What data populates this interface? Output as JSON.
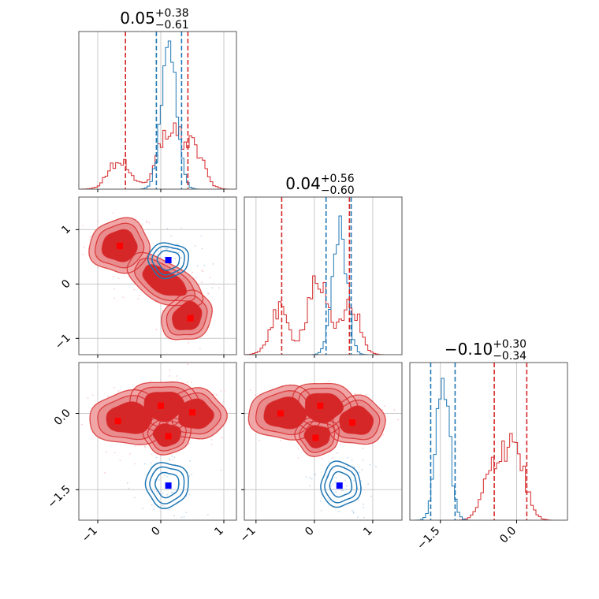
{
  "chart_data": {
    "type": "corner",
    "colors": {
      "red": "#d62728",
      "blue": "#1f77b4",
      "red_fill": "#f0a6a6",
      "marker_red": "#ff0000",
      "marker_blue": "#0000ff",
      "grid": "#c8c8c8"
    },
    "panels": [
      {
        "id": "hist-1",
        "type": "histogram",
        "row": 0,
        "col": 0,
        "title": {
          "main": "0.05",
          "sup": "+0.38",
          "sub": "−0.61"
        },
        "xlim": [
          -1.3,
          1.2
        ],
        "red_quantiles": [
          -0.56,
          0.43
        ],
        "blue_quantiles": [
          -0.07,
          0.33
        ],
        "red_modes": [
          {
            "mu": -0.65,
            "sigma": 0.17,
            "w": 0.22
          },
          {
            "mu": 0.12,
            "sigma": 0.16,
            "w": 0.45
          },
          {
            "mu": 0.5,
            "sigma": 0.16,
            "w": 0.33
          }
        ],
        "red_peak": 0.42,
        "blue_modes": [
          {
            "mu": 0.13,
            "sigma": 0.12,
            "w": 1.0
          }
        ],
        "blue_peak": 0.94
      },
      {
        "id": "hist-2",
        "type": "histogram",
        "row": 1,
        "col": 1,
        "title": {
          "main": "0.04",
          "sup": "+0.56",
          "sub": "−0.60"
        },
        "xlim": [
          -1.2,
          1.5
        ],
        "red_quantiles": [
          -0.56,
          0.6
        ],
        "blue_quantiles": [
          0.2,
          0.63
        ],
        "red_modes": [
          {
            "mu": -0.6,
            "sigma": 0.16,
            "w": 0.25
          },
          {
            "mu": 0.05,
            "sigma": 0.17,
            "w": 0.45
          },
          {
            "mu": 0.62,
            "sigma": 0.15,
            "w": 0.3
          }
        ],
        "red_peak": 0.5,
        "blue_modes": [
          {
            "mu": 0.43,
            "sigma": 0.12,
            "w": 1.0
          }
        ],
        "blue_peak": 0.88
      },
      {
        "id": "hist-3",
        "type": "histogram",
        "row": 2,
        "col": 2,
        "title": {
          "main": "−0.10",
          "sup": "+0.30",
          "sub": "−0.34"
        },
        "xlim": [
          -2.1,
          1.0
        ],
        "red_quantiles": [
          -0.44,
          0.2
        ],
        "blue_quantiles": [
          -1.69,
          -1.21
        ],
        "red_modes": [
          {
            "mu": -0.05,
            "sigma": 0.2,
            "w": 0.6
          },
          {
            "mu": -0.45,
            "sigma": 0.2,
            "w": 0.4
          }
        ],
        "red_peak": 0.55,
        "blue_modes": [
          {
            "mu": -1.45,
            "sigma": 0.13,
            "w": 1.0
          }
        ],
        "blue_peak": 0.9
      },
      {
        "id": "contour-2-1",
        "type": "contour",
        "row": 1,
        "col": 0,
        "xlim": [
          -1.3,
          1.2
        ],
        "ylim": [
          -1.3,
          1.6
        ],
        "red_markers": [
          [
            -0.65,
            0.7
          ],
          [
            0.47,
            -0.63
          ]
        ],
        "blue_markers": [
          [
            0.12,
            0.44
          ]
        ],
        "red_blobs": [
          {
            "cx": -0.65,
            "cy": 0.7,
            "rx": 0.38,
            "ry": 0.4,
            "rot": -20
          },
          {
            "cx": 0.05,
            "cy": 0.05,
            "rx": 0.55,
            "ry": 0.28,
            "rot": -35
          },
          {
            "cx": 0.42,
            "cy": -0.6,
            "rx": 0.3,
            "ry": 0.38,
            "rot": -30
          }
        ],
        "blue_ellipses": [
          {
            "cx": 0.12,
            "cy": 0.44,
            "rx": 0.32,
            "ry": 0.32,
            "rot": 0
          }
        ]
      },
      {
        "id": "contour-3-1",
        "type": "contour",
        "row": 2,
        "col": 0,
        "xlim": [
          -1.3,
          1.2
        ],
        "ylim": [
          -2.1,
          1.0
        ],
        "red_markers": [
          [
            -0.68,
            -0.15
          ],
          [
            0.0,
            0.15
          ],
          [
            0.5,
            0.02
          ],
          [
            0.12,
            -0.45
          ]
        ],
        "blue_markers": [
          [
            0.12,
            -1.42
          ]
        ],
        "red_blobs": [
          {
            "cx": -0.5,
            "cy": -0.1,
            "rx": 0.5,
            "ry": 0.42,
            "rot": 0
          },
          {
            "cx": 0.05,
            "cy": 0.15,
            "rx": 0.45,
            "ry": 0.4,
            "rot": 0
          },
          {
            "cx": 0.55,
            "cy": -0.02,
            "rx": 0.38,
            "ry": 0.4,
            "rot": 0
          },
          {
            "cx": 0.1,
            "cy": -0.42,
            "rx": 0.3,
            "ry": 0.3,
            "rot": 0
          }
        ],
        "blue_ellipses": [
          {
            "cx": 0.1,
            "cy": -1.4,
            "rx": 0.34,
            "ry": 0.44,
            "rot": 0
          }
        ]
      },
      {
        "id": "contour-3-2",
        "type": "contour",
        "row": 2,
        "col": 1,
        "xlim": [
          -1.2,
          1.5
        ],
        "ylim": [
          -2.1,
          1.0
        ],
        "red_markers": [
          [
            -0.58,
            0.0
          ],
          [
            0.1,
            0.15
          ],
          [
            0.65,
            -0.18
          ],
          [
            0.02,
            -0.48
          ]
        ],
        "blue_markers": [
          [
            0.43,
            -1.42
          ]
        ],
        "red_blobs": [
          {
            "cx": -0.5,
            "cy": 0.0,
            "rx": 0.5,
            "ry": 0.42,
            "rot": 0
          },
          {
            "cx": 0.15,
            "cy": 0.12,
            "rx": 0.45,
            "ry": 0.4,
            "rot": 0
          },
          {
            "cx": 0.72,
            "cy": -0.15,
            "rx": 0.4,
            "ry": 0.38,
            "rot": 0
          },
          {
            "cx": 0.05,
            "cy": -0.45,
            "rx": 0.3,
            "ry": 0.3,
            "rot": 0
          }
        ],
        "blue_ellipses": [
          {
            "cx": 0.45,
            "cy": -1.4,
            "rx": 0.34,
            "ry": 0.44,
            "rot": 0
          }
        ]
      }
    ],
    "axes": {
      "x_ticks": [
        {
          "col": 0,
          "values": [
            -1,
            0,
            1
          ],
          "labels": [
            "−1",
            "0",
            "1"
          ]
        },
        {
          "col": 1,
          "values": [
            -1,
            0,
            1
          ],
          "labels": [
            "−1",
            "0",
            "1"
          ]
        },
        {
          "col": 2,
          "values": [
            -1.5,
            0.0
          ],
          "labels": [
            "−1.5",
            "0.0"
          ]
        }
      ],
      "y_ticks": [
        {
          "row": 1,
          "values": [
            -1,
            0,
            1
          ],
          "labels": [
            "−1",
            "0",
            "1"
          ]
        },
        {
          "row": 2,
          "values": [
            -1.5,
            0.0
          ],
          "labels": [
            "−1.5",
            "0.0"
          ]
        }
      ]
    },
    "grid": true
  }
}
